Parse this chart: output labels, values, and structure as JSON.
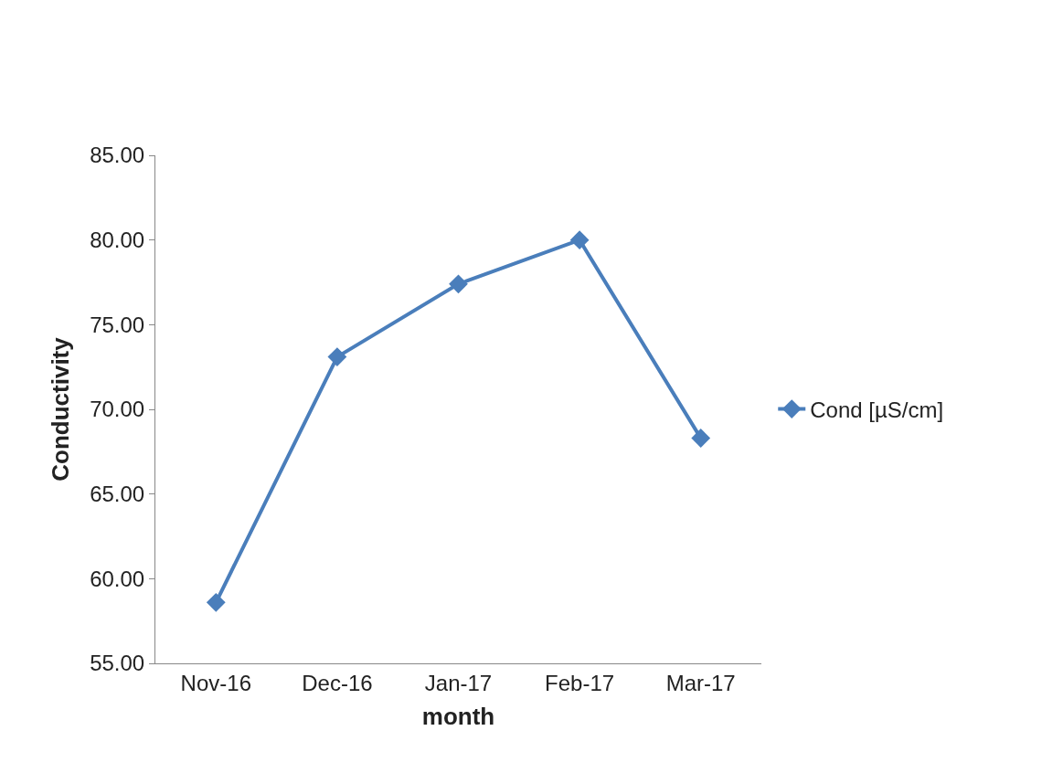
{
  "chart_data": {
    "type": "line",
    "xlabel": "month",
    "ylabel": "Conductivity",
    "categories": [
      "Nov-16",
      "Dec-16",
      "Jan-17",
      "Feb-17",
      "Mar-17"
    ],
    "series": [
      {
        "name": "Cond [µS/cm]",
        "color": "#4a7ebb",
        "values": [
          58.6,
          73.1,
          77.4,
          80.0,
          68.3
        ]
      }
    ],
    "ylim": [
      55,
      85
    ],
    "yticks": [
      {
        "value": 55,
        "label": "55.00"
      },
      {
        "value": 60,
        "label": "60.00"
      },
      {
        "value": 65,
        "label": "65.00"
      },
      {
        "value": 70,
        "label": "70.00"
      },
      {
        "value": 75,
        "label": "75.00"
      },
      {
        "value": 80,
        "label": "80.00"
      },
      {
        "value": 85,
        "label": "85.00"
      }
    ],
    "legend": "right",
    "marker": "diamond",
    "line_style": "solid"
  }
}
